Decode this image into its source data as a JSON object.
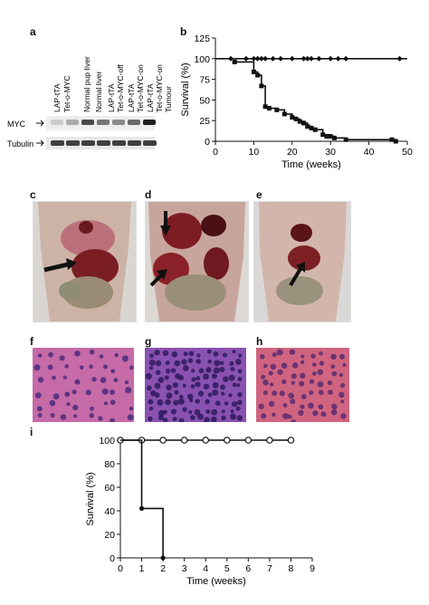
{
  "panels": {
    "a": "a",
    "b": "b",
    "c": "c",
    "d": "d",
    "e": "e",
    "f": "f",
    "g": "g",
    "h": "h",
    "i": "i"
  },
  "blot": {
    "lane_labels": [
      "LAP-tTA",
      "Tet-o-MYC",
      "Normal pup liver",
      "Normal liver",
      "LAP-tTA",
      "Tet-o-MYC-off",
      "LAP-tTA",
      "Tet-o-MYC-on",
      "LAP-tTA",
      "Tet-o-MYC-on",
      "Tumour"
    ],
    "rows": [
      "MYC",
      "Tubulin"
    ],
    "myc_intensity": [
      0.15,
      0.3,
      0.75,
      0.55,
      0.45,
      0.6,
      0.95
    ],
    "tubulin_intensity": [
      0.8,
      0.8,
      0.8,
      0.8,
      0.8,
      0.8,
      0.8
    ]
  },
  "chart_data": [
    {
      "id": "b",
      "type": "line",
      "xlabel": "Time (weeks)",
      "ylabel": "Survival (%)",
      "xlim": [
        0,
        50
      ],
      "ylim": [
        0,
        125
      ],
      "xticks": [
        0,
        10,
        20,
        30,
        40,
        50
      ],
      "yticks": [
        0,
        25,
        50,
        75,
        100,
        125
      ],
      "series": [
        {
          "step": true,
          "marker": "diamond",
          "x": [
            0,
            50
          ],
          "y": [
            100,
            100
          ],
          "markers_x": [
            4,
            8,
            10,
            11,
            12,
            13,
            15,
            17,
            20,
            23,
            24,
            25,
            27,
            30,
            32,
            34,
            48
          ],
          "markers_y": [
            100,
            100,
            100,
            100,
            100,
            100,
            100,
            100,
            100,
            100,
            100,
            100,
            100,
            100,
            100,
            100,
            100
          ]
        },
        {
          "step": true,
          "marker": "square",
          "x": [
            5,
            10,
            11,
            12,
            13,
            14,
            16,
            18,
            20,
            21,
            22,
            23,
            24,
            25,
            26,
            28,
            29,
            30,
            31,
            34,
            46,
            47
          ],
          "y": [
            96,
            84,
            80,
            67,
            42,
            40,
            38,
            33,
            29,
            27,
            24,
            22,
            18,
            16,
            14,
            8,
            6,
            6,
            4,
            2,
            2,
            0
          ]
        }
      ]
    },
    {
      "id": "i",
      "type": "line",
      "xlabel": "Time (weeks)",
      "ylabel": "Survival (%)",
      "xlim": [
        0,
        9
      ],
      "ylim": [
        0,
        100
      ],
      "xticks": [
        0,
        1,
        2,
        3,
        4,
        5,
        6,
        7,
        8,
        9
      ],
      "yticks": [
        0,
        20,
        40,
        60,
        80,
        100
      ],
      "series": [
        {
          "step": true,
          "marker": "open-circle",
          "x": [
            0,
            1,
            2,
            3,
            4,
            5,
            6,
            7,
            8
          ],
          "y": [
            100,
            100,
            100,
            100,
            100,
            100,
            100,
            100,
            100
          ]
        },
        {
          "step": true,
          "marker": "filled-circle",
          "x": [
            0,
            1,
            2
          ],
          "y": [
            100,
            42,
            0
          ]
        }
      ]
    }
  ]
}
